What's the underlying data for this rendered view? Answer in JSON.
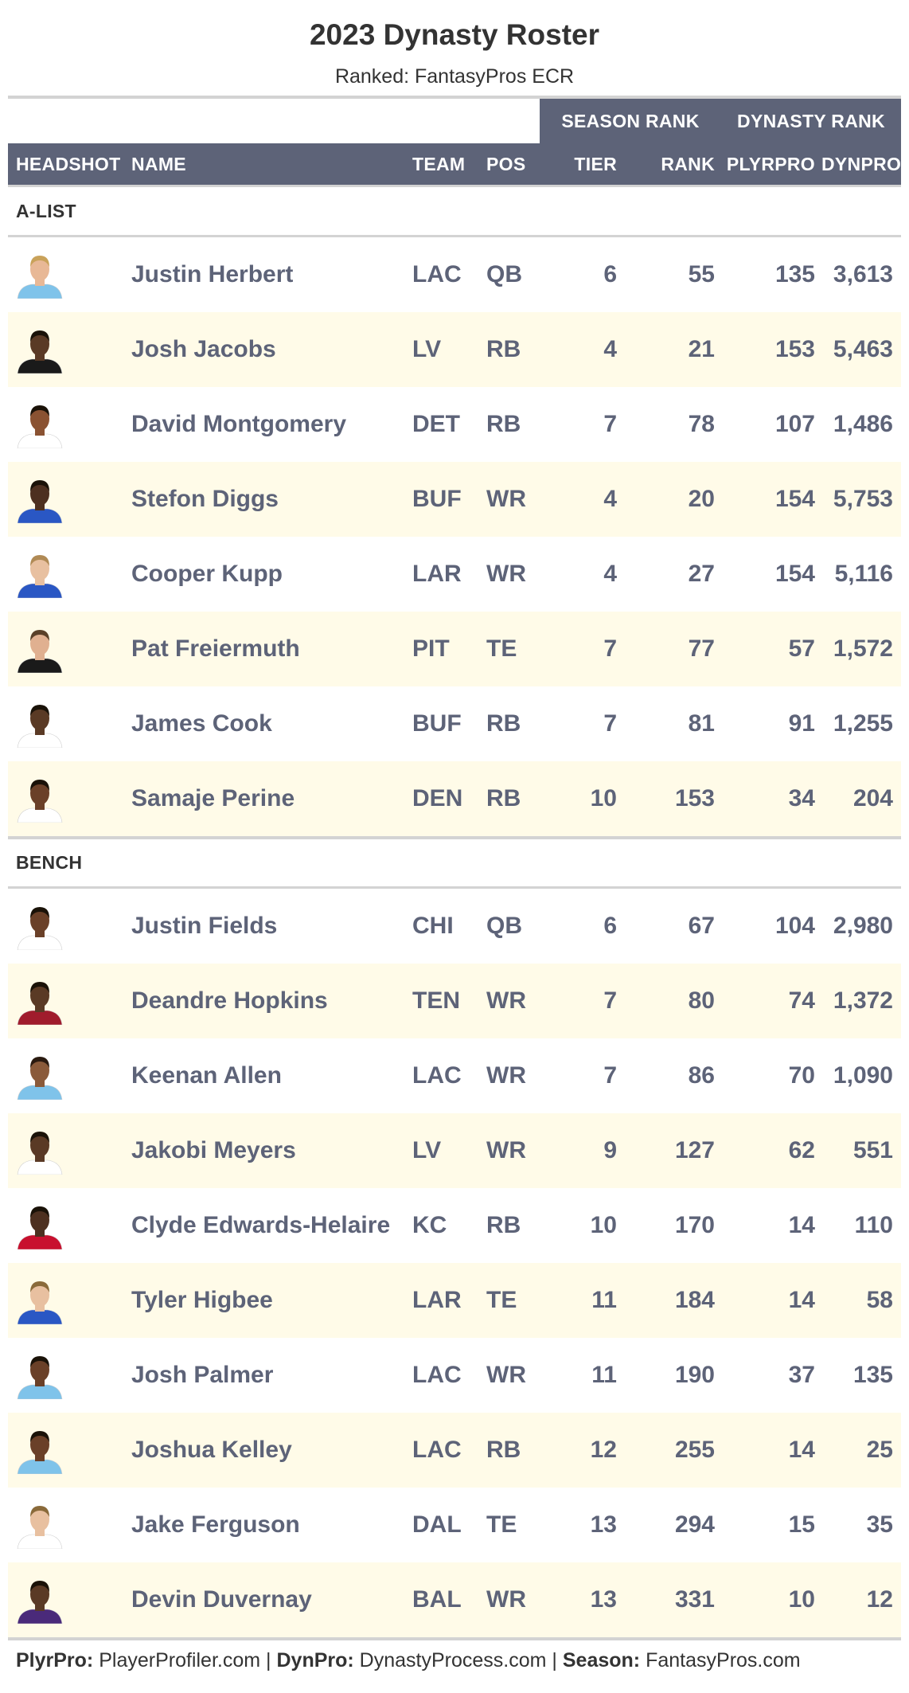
{
  "title": "2023 Dynasty Roster",
  "subtitle": "Ranked: FantasyPros ECR",
  "spanners": {
    "season": "SEASON RANK",
    "dynasty": "DYNASTY RANK"
  },
  "columns": {
    "headshot": "HEADSHOT",
    "name": "NAME",
    "team": "TEAM",
    "pos": "POS",
    "tier": "TIER",
    "rank": "RANK",
    "plyrpro": "PLYRPRO",
    "dynpro": "DYNPRO"
  },
  "groups": [
    {
      "label": "A-LIST",
      "rows": [
        {
          "name": "Justin Herbert",
          "team": "LAC",
          "pos": "QB",
          "tier": "6",
          "rank": "55",
          "plyrpro": "135",
          "dynpro": "3,613",
          "jersey": "#7fc3ea",
          "skin": "#e8b896",
          "hair": "#c9a25a"
        },
        {
          "name": "Josh Jacobs",
          "team": "LV",
          "pos": "RB",
          "tier": "4",
          "rank": "21",
          "plyrpro": "153",
          "dynpro": "5,463",
          "jersey": "#1a1a1a",
          "skin": "#5a3a25",
          "hair": "#1a1208"
        },
        {
          "name": "David Montgomery",
          "team": "DET",
          "pos": "RB",
          "tier": "7",
          "rank": "78",
          "plyrpro": "107",
          "dynpro": "1,486",
          "jersey": "#ffffff",
          "skin": "#8a5232",
          "hair": "#1a1208"
        },
        {
          "name": "Stefon Diggs",
          "team": "BUF",
          "pos": "WR",
          "tier": "4",
          "rank": "20",
          "plyrpro": "154",
          "dynpro": "5,753",
          "jersey": "#2a57c4",
          "skin": "#4d3020",
          "hair": "#1a1208"
        },
        {
          "name": "Cooper Kupp",
          "team": "LAR",
          "pos": "WR",
          "tier": "4",
          "rank": "27",
          "plyrpro": "154",
          "dynpro": "5,116",
          "jersey": "#2a57c4",
          "skin": "#e8c0a0",
          "hair": "#b08a55"
        },
        {
          "name": "Pat Freiermuth",
          "team": "PIT",
          "pos": "TE",
          "tier": "7",
          "rank": "77",
          "plyrpro": "57",
          "dynpro": "1,572",
          "jersey": "#1a1a1a",
          "skin": "#e0b090",
          "hair": "#5a4028"
        },
        {
          "name": "James Cook",
          "team": "BUF",
          "pos": "RB",
          "tier": "7",
          "rank": "81",
          "plyrpro": "91",
          "dynpro": "1,255",
          "jersey": "#ffffff",
          "skin": "#5a3a25",
          "hair": "#1a1208"
        },
        {
          "name": "Samaje Perine",
          "team": "DEN",
          "pos": "RB",
          "tier": "10",
          "rank": "153",
          "plyrpro": "34",
          "dynpro": "204",
          "jersey": "#ffffff",
          "skin": "#6a4028",
          "hair": "#1a1208"
        }
      ]
    },
    {
      "label": "BENCH",
      "rows": [
        {
          "name": "Justin Fields",
          "team": "CHI",
          "pos": "QB",
          "tier": "6",
          "rank": "67",
          "plyrpro": "104",
          "dynpro": "2,980",
          "jersey": "#ffffff",
          "skin": "#6a4028",
          "hair": "#1a1208"
        },
        {
          "name": "Deandre Hopkins",
          "team": "TEN",
          "pos": "WR",
          "tier": "7",
          "rank": "80",
          "plyrpro": "74",
          "dynpro": "1,372",
          "jersey": "#a01c2c",
          "skin": "#5a3a25",
          "hair": "#1a1208"
        },
        {
          "name": "Keenan Allen",
          "team": "LAC",
          "pos": "WR",
          "tier": "7",
          "rank": "86",
          "plyrpro": "70",
          "dynpro": "1,090",
          "jersey": "#7fc3ea",
          "skin": "#8a5a3a",
          "hair": "#2a1a10"
        },
        {
          "name": "Jakobi Meyers",
          "team": "LV",
          "pos": "WR",
          "tier": "9",
          "rank": "127",
          "plyrpro": "62",
          "dynpro": "551",
          "jersey": "#ffffff",
          "skin": "#5a3a25",
          "hair": "#1a1208"
        },
        {
          "name": "Clyde Edwards-Helaire",
          "team": "KC",
          "pos": "RB",
          "tier": "10",
          "rank": "170",
          "plyrpro": "14",
          "dynpro": "110",
          "jersey": "#c8102e",
          "skin": "#4d3020",
          "hair": "#1a1208"
        },
        {
          "name": "Tyler Higbee",
          "team": "LAR",
          "pos": "TE",
          "tier": "11",
          "rank": "184",
          "plyrpro": "14",
          "dynpro": "58",
          "jersey": "#2a57c4",
          "skin": "#e8c0a0",
          "hair": "#8a6a3a"
        },
        {
          "name": "Josh Palmer",
          "team": "LAC",
          "pos": "WR",
          "tier": "11",
          "rank": "190",
          "plyrpro": "37",
          "dynpro": "135",
          "jersey": "#7fc3ea",
          "skin": "#6a4028",
          "hair": "#1a1208"
        },
        {
          "name": "Joshua Kelley",
          "team": "LAC",
          "pos": "RB",
          "tier": "12",
          "rank": "255",
          "plyrpro": "14",
          "dynpro": "25",
          "jersey": "#7fc3ea",
          "skin": "#6a4028",
          "hair": "#1a1208"
        },
        {
          "name": "Jake Ferguson",
          "team": "DAL",
          "pos": "TE",
          "tier": "13",
          "rank": "294",
          "plyrpro": "15",
          "dynpro": "35",
          "jersey": "#ffffff",
          "skin": "#e8c0a0",
          "hair": "#8a6a3a"
        },
        {
          "name": "Devin Duvernay",
          "team": "BAL",
          "pos": "WR",
          "tier": "13",
          "rank": "331",
          "plyrpro": "10",
          "dynpro": "12",
          "jersey": "#4a2a7a",
          "skin": "#5a3a25",
          "hair": "#1a1208"
        }
      ]
    }
  ],
  "footer": {
    "plyrpro_label": "PlyrPro:",
    "plyrpro_source": "PlayerProfiler.com",
    "sep1": "|",
    "dynpro_label": "DynPro:",
    "dynpro_source": "DynastyProcess.com",
    "sep2": "|",
    "season_label": "Season:",
    "season_source": "FantasyPros.com"
  }
}
